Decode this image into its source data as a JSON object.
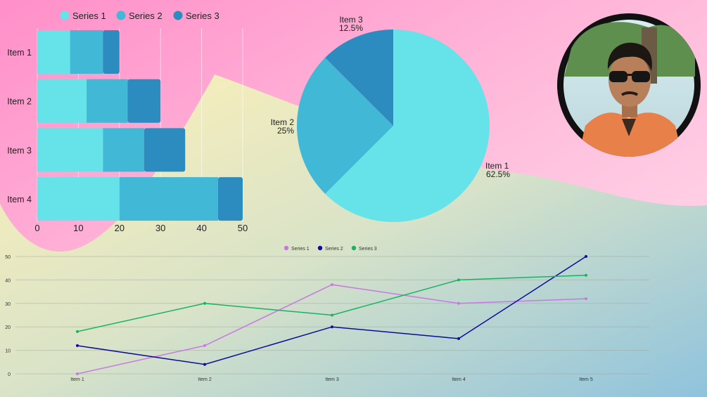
{
  "colors": {
    "s1": "#66e3e8",
    "s2": "#40b8d6",
    "s3": "#2d8cbf",
    "line1": "#c879e0",
    "line2": "#0c0c9a",
    "line3": "#17b361"
  },
  "avatar": {
    "icon": "person-photo-icon"
  },
  "chart_data": [
    {
      "type": "bar",
      "orientation": "horizontal",
      "stacked": true,
      "categories": [
        "Item 1",
        "Item 2",
        "Item 3",
        "Item 4"
      ],
      "series": [
        {
          "name": "Series 1",
          "values": [
            8,
            12,
            16,
            20
          ]
        },
        {
          "name": "Series 2",
          "values": [
            8,
            10,
            10,
            24
          ]
        },
        {
          "name": "Series 3",
          "values": [
            4,
            8,
            10,
            6
          ]
        }
      ],
      "xlim": [
        0,
        50
      ],
      "xticks": [
        "0",
        "10",
        "20",
        "30",
        "40",
        "50"
      ],
      "grid": true,
      "legend": "top"
    },
    {
      "type": "pie",
      "labels": [
        "Item 1",
        "Item 2",
        "Item 3"
      ],
      "values": [
        62.5,
        25,
        12.5
      ],
      "value_labels": [
        "62.5%",
        "25%",
        "12.5%"
      ]
    },
    {
      "type": "line",
      "categories": [
        "Item 1",
        "Item 2",
        "Item 3",
        "Item 4",
        "Item 5"
      ],
      "series": [
        {
          "name": "Series 1",
          "values": [
            0,
            12,
            38,
            30,
            32
          ]
        },
        {
          "name": "Series 2",
          "values": [
            12,
            4,
            20,
            15,
            50
          ]
        },
        {
          "name": "Series 3",
          "values": [
            18,
            30,
            25,
            40,
            42
          ]
        }
      ],
      "ylim": [
        0,
        50
      ],
      "yticks": [
        "0",
        "10",
        "20",
        "30",
        "40",
        "50"
      ],
      "grid": true,
      "legend": "top"
    }
  ]
}
